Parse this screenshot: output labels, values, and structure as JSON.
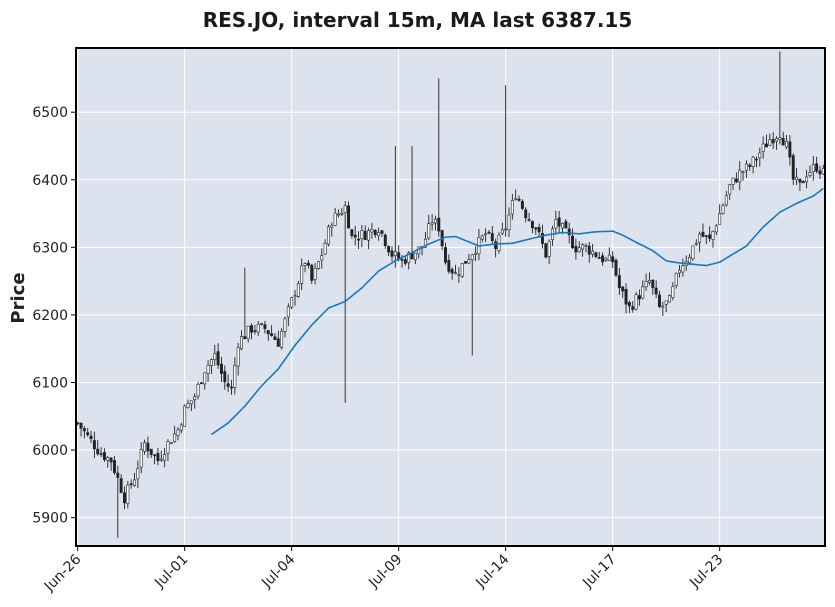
{
  "chart_data": {
    "type": "candlestick",
    "title": "RES.JO, interval 15m, MA last 6387.15",
    "ylabel": "Price",
    "xlabel": "",
    "ylim": [
      5858,
      6595
    ],
    "grid": true,
    "y_ticks": [
      5900,
      6000,
      6100,
      6200,
      6300,
      6400,
      6500
    ],
    "x_tick_labels": [
      "Jun-26",
      "Jul-01",
      "Jul-04",
      "Jul-09",
      "Jul-14",
      "Jul-17",
      "Jul-23"
    ],
    "x_tick_positions": [
      0,
      32,
      64,
      96,
      128,
      160,
      192
    ],
    "bars_per_day": 16,
    "total_bars": 224,
    "ma_last": 6387.15,
    "colors": {
      "background": "#dce3ef",
      "grid": "#ffffff",
      "candle": "#222222",
      "ma_line": "#1f77b4",
      "frame": "#000000"
    },
    "close_anchors": [
      [
        0,
        6040
      ],
      [
        3,
        6020
      ],
      [
        7,
        5995
      ],
      [
        10,
        5985
      ],
      [
        14,
        5930
      ],
      [
        17,
        5960
      ],
      [
        20,
        6010
      ],
      [
        24,
        5985
      ],
      [
        27,
        6010
      ],
      [
        30,
        6030
      ],
      [
        32,
        6060
      ],
      [
        35,
        6080
      ],
      [
        38,
        6120
      ],
      [
        41,
        6140
      ],
      [
        44,
        6100
      ],
      [
        46,
        6090
      ],
      [
        48,
        6160
      ],
      [
        52,
        6180
      ],
      [
        56,
        6180
      ],
      [
        60,
        6160
      ],
      [
        64,
        6220
      ],
      [
        68,
        6280
      ],
      [
        70,
        6250
      ],
      [
        73,
        6290
      ],
      [
        76,
        6340
      ],
      [
        80,
        6360
      ],
      [
        82,
        6315
      ],
      [
        86,
        6320
      ],
      [
        90,
        6330
      ],
      [
        94,
        6290
      ],
      [
        97,
        6280
      ],
      [
        100,
        6290
      ],
      [
        103,
        6300
      ],
      [
        106,
        6340
      ],
      [
        108,
        6330
      ],
      [
        110,
        6280
      ],
      [
        113,
        6260
      ],
      [
        116,
        6280
      ],
      [
        119,
        6300
      ],
      [
        122,
        6320
      ],
      [
        125,
        6300
      ],
      [
        128,
        6330
      ],
      [
        131,
        6380
      ],
      [
        134,
        6350
      ],
      [
        137,
        6330
      ],
      [
        140,
        6290
      ],
      [
        143,
        6340
      ],
      [
        146,
        6320
      ],
      [
        149,
        6300
      ],
      [
        152,
        6300
      ],
      [
        155,
        6290
      ],
      [
        158,
        6280
      ],
      [
        160,
        6280
      ],
      [
        162,
        6240
      ],
      [
        165,
        6210
      ],
      [
        168,
        6230
      ],
      [
        171,
        6250
      ],
      [
        174,
        6210
      ],
      [
        177,
        6220
      ],
      [
        180,
        6270
      ],
      [
        183,
        6290
      ],
      [
        186,
        6320
      ],
      [
        189,
        6310
      ],
      [
        192,
        6350
      ],
      [
        195,
        6390
      ],
      [
        198,
        6410
      ],
      [
        201,
        6420
      ],
      [
        204,
        6440
      ],
      [
        207,
        6460
      ],
      [
        210,
        6470
      ],
      [
        212,
        6450
      ],
      [
        214,
        6400
      ],
      [
        216,
        6390
      ],
      [
        218,
        6410
      ],
      [
        221,
        6420
      ],
      [
        223,
        6410
      ]
    ],
    "spikes": [
      [
        12,
        5870,
        5930
      ],
      [
        50,
        6270,
        6190
      ],
      [
        80,
        6070,
        6360
      ],
      [
        95,
        6450,
        6270
      ],
      [
        100,
        6450,
        6290
      ],
      [
        108,
        6550,
        6340
      ],
      [
        118,
        6140,
        6270
      ],
      [
        128,
        6540,
        6340
      ],
      [
        210,
        6590,
        6470
      ]
    ],
    "ma_anchors": [
      [
        40,
        6023
      ],
      [
        45,
        6040
      ],
      [
        50,
        6065
      ],
      [
        55,
        6095
      ],
      [
        60,
        6120
      ],
      [
        65,
        6155
      ],
      [
        70,
        6185
      ],
      [
        75,
        6210
      ],
      [
        80,
        6220
      ],
      [
        85,
        6240
      ],
      [
        90,
        6265
      ],
      [
        95,
        6280
      ],
      [
        100,
        6292
      ],
      [
        105,
        6305
      ],
      [
        110,
        6315
      ],
      [
        113,
        6316
      ],
      [
        116,
        6310
      ],
      [
        120,
        6302
      ],
      [
        125,
        6305
      ],
      [
        130,
        6306
      ],
      [
        135,
        6312
      ],
      [
        140,
        6318
      ],
      [
        145,
        6322
      ],
      [
        150,
        6320
      ],
      [
        155,
        6323
      ],
      [
        160,
        6324
      ],
      [
        163,
        6318
      ],
      [
        168,
        6305
      ],
      [
        172,
        6295
      ],
      [
        176,
        6280
      ],
      [
        180,
        6277
      ],
      [
        184,
        6275
      ],
      [
        188,
        6273
      ],
      [
        192,
        6278
      ],
      [
        196,
        6290
      ],
      [
        200,
        6302
      ],
      [
        205,
        6330
      ],
      [
        210,
        6352
      ],
      [
        215,
        6365
      ],
      [
        220,
        6376
      ],
      [
        223,
        6387.15
      ]
    ]
  }
}
